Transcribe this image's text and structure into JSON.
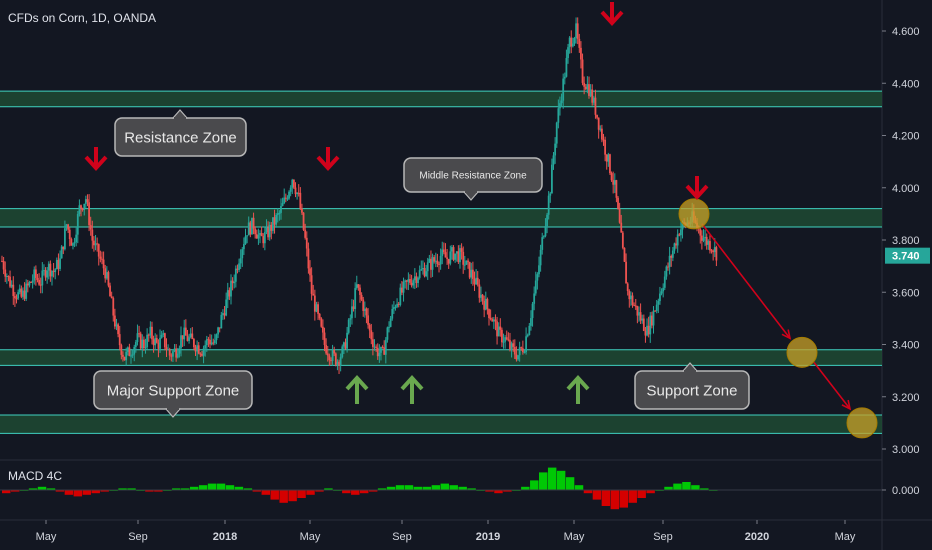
{
  "header": {
    "title": "CFDs on Corn, 1D, OANDA"
  },
  "macd": {
    "title": "MACD 4C",
    "value_label": "0.000"
  },
  "colors": {
    "background": "#131722",
    "zone_line": "#3fd1c0",
    "zone_fill": "#1e4a32",
    "candle_up": "#26a69a",
    "candle_down": "#ef5350",
    "arrow_down": "#d0021b",
    "arrow_up": "#6aa84f",
    "circle": "#c9a227",
    "projection": "#d0021b",
    "last_price_bg": "#26a69a",
    "axis_text": "#d1d4dc",
    "callout_bg": "#4a4a4d"
  },
  "annotations": {
    "resistance_zone": "Resistance Zone",
    "middle_resistance_zone": "Middle Resistance Zone",
    "major_support_zone": "Major Support Zone",
    "support_zone": "Support Zone"
  },
  "chart_data": {
    "type": "line",
    "title": "CFDs on Corn, 1D, OANDA",
    "xlabel": "",
    "ylabel": "",
    "ylim": [
      3.0,
      4.65
    ],
    "y_ticks": [
      "4.600",
      "4.400",
      "4.200",
      "4.000",
      "3.800",
      "3.600",
      "3.400",
      "3.200",
      "3.000"
    ],
    "x_ticks": [
      "May",
      "Sep",
      "2018",
      "May",
      "Sep",
      "2019",
      "May",
      "Sep",
      "2020",
      "May"
    ],
    "last_price": "3.740",
    "grid": false,
    "zones": [
      {
        "name": "Resistance Zone",
        "low": 4.31,
        "high": 4.37
      },
      {
        "name": "Middle Resistance Zone",
        "low": 3.85,
        "high": 3.92
      },
      {
        "name": "Support Zone",
        "low": 3.32,
        "high": 3.38
      },
      {
        "name": "Major Support Zone",
        "low": 3.06,
        "high": 3.13
      }
    ],
    "series": [
      {
        "values": [
          3.72,
          3.65,
          3.6,
          3.58,
          3.62,
          3.66,
          3.64,
          3.7,
          3.68,
          3.72,
          3.86,
          3.78,
          3.92,
          3.96,
          3.8,
          3.74,
          3.68,
          3.55,
          3.42,
          3.35,
          3.38,
          3.42,
          3.4,
          3.44,
          3.4,
          3.42,
          3.36,
          3.38,
          3.44,
          3.42,
          3.4,
          3.38,
          3.42,
          3.4,
          3.5,
          3.58,
          3.66,
          3.76,
          3.84,
          3.86,
          3.8,
          3.82,
          3.86,
          3.9,
          3.96,
          4.04,
          3.96,
          3.8,
          3.6,
          3.5,
          3.4,
          3.36,
          3.34,
          3.38,
          3.5,
          3.62,
          3.55,
          3.45,
          3.38,
          3.36,
          3.48,
          3.56,
          3.6,
          3.64,
          3.66,
          3.68,
          3.7,
          3.72,
          3.74,
          3.73,
          3.75,
          3.74,
          3.7,
          3.66,
          3.6,
          3.55,
          3.5,
          3.44,
          3.42,
          3.38,
          3.36,
          3.4,
          3.52,
          3.66,
          3.84,
          4.0,
          4.25,
          4.4,
          4.56,
          4.6,
          4.42,
          4.38,
          4.3,
          4.2,
          4.1,
          4.0,
          3.8,
          3.6,
          3.55,
          3.5,
          3.45,
          3.52,
          3.6,
          3.68,
          3.76,
          3.84,
          3.86,
          3.88,
          3.84,
          3.8,
          3.78,
          3.74
        ],
        "x_range": [
          "Mar 2017",
          "Nov 2019"
        ]
      }
    ],
    "macd_histogram": [
      -0.02,
      -0.01,
      0.0,
      0.01,
      0.02,
      0.01,
      -0.01,
      -0.03,
      -0.04,
      -0.03,
      -0.02,
      -0.01,
      0.0,
      0.01,
      0.01,
      0.0,
      -0.01,
      -0.01,
      0.0,
      0.01,
      0.01,
      0.02,
      0.03,
      0.04,
      0.04,
      0.03,
      0.02,
      0.01,
      -0.01,
      -0.03,
      -0.06,
      -0.08,
      -0.07,
      -0.05,
      -0.03,
      -0.01,
      0.01,
      0.0,
      -0.02,
      -0.03,
      -0.02,
      -0.01,
      0.01,
      0.02,
      0.03,
      0.03,
      0.02,
      0.02,
      0.03,
      0.04,
      0.03,
      0.02,
      0.01,
      0.0,
      -0.01,
      -0.02,
      -0.01,
      0.0,
      0.02,
      0.06,
      0.11,
      0.14,
      0.12,
      0.08,
      0.03,
      -0.02,
      -0.06,
      -0.1,
      -0.12,
      -0.11,
      -0.08,
      -0.05,
      -0.02,
      0.0,
      0.02,
      0.04,
      0.05,
      0.03,
      0.01,
      0.0
    ],
    "signal_arrows": {
      "down_at_values": [
        3.96,
        4.04,
        4.6,
        3.88
      ],
      "up_at_values": [
        3.36,
        3.36,
        3.36
      ]
    },
    "projection_circles": [
      3.9,
      3.37,
      3.1
    ]
  }
}
